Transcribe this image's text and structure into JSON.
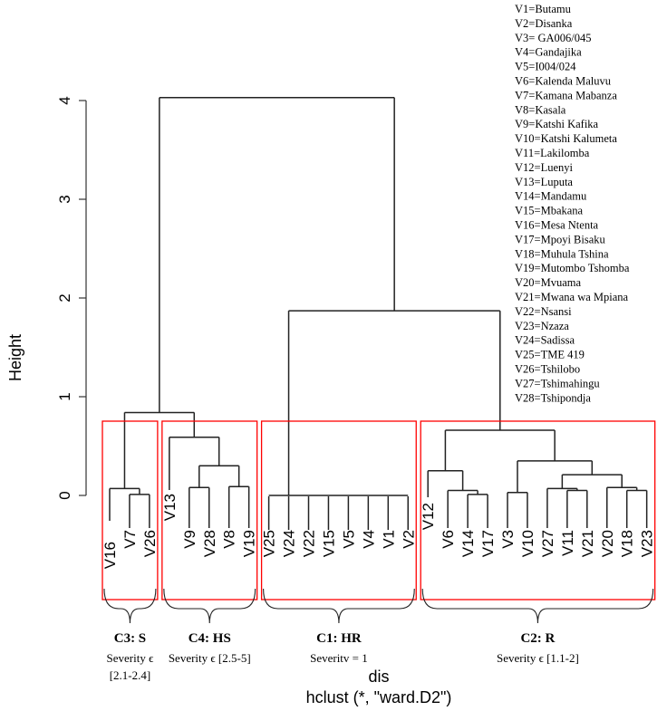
{
  "chart_data": {
    "type": "dendrogram",
    "ylabel": "Height",
    "xlabel": "dis",
    "subtitle": "hclust (*, \"ward.D2\")",
    "yticks": [
      0,
      1,
      2,
      3,
      4
    ],
    "ylim": [
      0,
      4.03
    ],
    "leaf_order": [
      "V16",
      "V7",
      "V26",
      "V13",
      "V9",
      "V28",
      "V8",
      "V19",
      "V25",
      "V24",
      "V22",
      "V15",
      "V5",
      "V4",
      "V1",
      "V2",
      "V12",
      "V6",
      "V14",
      "V17",
      "V3",
      "V10",
      "V27",
      "V11",
      "V21",
      "V20",
      "V18",
      "V23"
    ],
    "leaf_label_height": {
      "V16": 0.08,
      "V7": 0.0,
      "V26": 0.0,
      "V13": 0.4,
      "V9": 0.0,
      "V28": 0.0,
      "V8": 0.0,
      "V19": 0.0,
      "V25": 0.0,
      "V24": 0.0,
      "V22": 0.0,
      "V15": 0.0,
      "V5": 0.0,
      "V4": 0.0,
      "V1": 0.0,
      "V2": 0.0,
      "V12": 0.22,
      "V6": 0.0,
      "V14": 0.0,
      "V17": 0.0,
      "V3": 0.0,
      "V10": 0.0,
      "V27": 0.0,
      "V11": 0.0,
      "V21": 0.0,
      "V20": 0.0,
      "V18": 0.0,
      "V23": 0.0
    },
    "merges": [
      {
        "id": "a1",
        "left": "V7",
        "right": "V26",
        "height": 0.01
      },
      {
        "id": "a2",
        "left": "V16",
        "right": "a1",
        "height": 0.07
      },
      {
        "id": "b1",
        "left": "V9",
        "right": "V28",
        "height": 0.08
      },
      {
        "id": "b2",
        "left": "V8",
        "right": "V19",
        "height": 0.09
      },
      {
        "id": "b3",
        "left": "b1",
        "right": "b2",
        "height": 0.3
      },
      {
        "id": "b4",
        "left": "V13",
        "right": "b3",
        "height": 0.59
      },
      {
        "id": "ab",
        "left": "a2",
        "right": "b4",
        "height": 0.84
      },
      {
        "id": "c1",
        "left": "V25",
        "right": "V24",
        "height": 0.0,
        "span": [
          "V25",
          "V2"
        ]
      },
      {
        "id": "d1",
        "left": "V14",
        "right": "V17",
        "height": 0.01
      },
      {
        "id": "d2",
        "left": "V6",
        "right": "d1",
        "height": 0.05
      },
      {
        "id": "d3",
        "left": "V12",
        "right": "d2",
        "height": 0.25
      },
      {
        "id": "e1",
        "left": "V3",
        "right": "V10",
        "height": 0.03
      },
      {
        "id": "e2",
        "left": "V11",
        "right": "V21",
        "height": 0.05
      },
      {
        "id": "e3",
        "left": "V27",
        "right": "e2",
        "height": 0.07
      },
      {
        "id": "e4",
        "left": "V18",
        "right": "V23",
        "height": 0.05
      },
      {
        "id": "e5",
        "left": "V20",
        "right": "e4",
        "height": 0.08
      },
      {
        "id": "e6",
        "left": "e3",
        "right": "e5",
        "height": 0.21
      },
      {
        "id": "e7",
        "left": "e1",
        "right": "e6",
        "height": 0.35
      },
      {
        "id": "d4",
        "left": "d3",
        "right": "e7",
        "height": 0.66
      },
      {
        "id": "cd",
        "left": "c1",
        "right": "d4",
        "height": 1.87
      },
      {
        "id": "root",
        "left": "ab",
        "right": "cd",
        "height": 4.03
      }
    ],
    "clusters": [
      {
        "name": "C3: S",
        "subtitle": [
          "Severity ϵ",
          "[2.1-2.4]"
        ],
        "members": [
          "V16",
          "V7",
          "V26"
        ],
        "box_color": "#ff0000"
      },
      {
        "name": "C4: HS",
        "subtitle": [
          "Severity ϵ [2.5-5]"
        ],
        "members": [
          "V13",
          "V9",
          "V28",
          "V8",
          "V19"
        ],
        "box_color": "#ff0000"
      },
      {
        "name": "C1: HR",
        "subtitle": [
          "Severitv = 1"
        ],
        "members": [
          "V25",
          "V24",
          "V22",
          "V15",
          "V5",
          "V4",
          "V1",
          "V2"
        ],
        "box_color": "#ff0000"
      },
      {
        "name": "C2: R",
        "subtitle": [
          "Severity ϵ [1.1-2]"
        ],
        "members": [
          "V12",
          "V6",
          "V14",
          "V17",
          "V3",
          "V10",
          "V27",
          "V11",
          "V21",
          "V20",
          "V18",
          "V23"
        ],
        "box_color": "#ff0000"
      }
    ],
    "legend": [
      "V1=Butamu",
      "V2=Disanka",
      "V3= GA006/045",
      "V4=Gandajika",
      "V5=I004/024",
      "V6=Kalenda Maluvu",
      "V7=Kamana Mabanza",
      "V8=Kasala",
      "V9=Katshi Kafika",
      "V10=Katshi Kalumeta",
      "V11=Lakilomba",
      "V12=Luenyi",
      "V13=Luputa",
      "V14=Mandamu",
      "V15=Mbakana",
      "V16=Mesa Ntenta",
      "V17=Mpoyi Bisaku",
      "V18=Muhula Tshina",
      "V19=Mutombo Tshomba",
      "V20=Mvuama",
      "V21=Mwana wa Mpiana",
      "V22=Nsansi",
      "V23=Nzaza",
      "V24=Sadissa",
      "V25=TME 419",
      "V26=Tshilobo",
      "V27=Tshimahingu",
      "V28=Tshipondja"
    ],
    "legend_placement": "top-right"
  }
}
